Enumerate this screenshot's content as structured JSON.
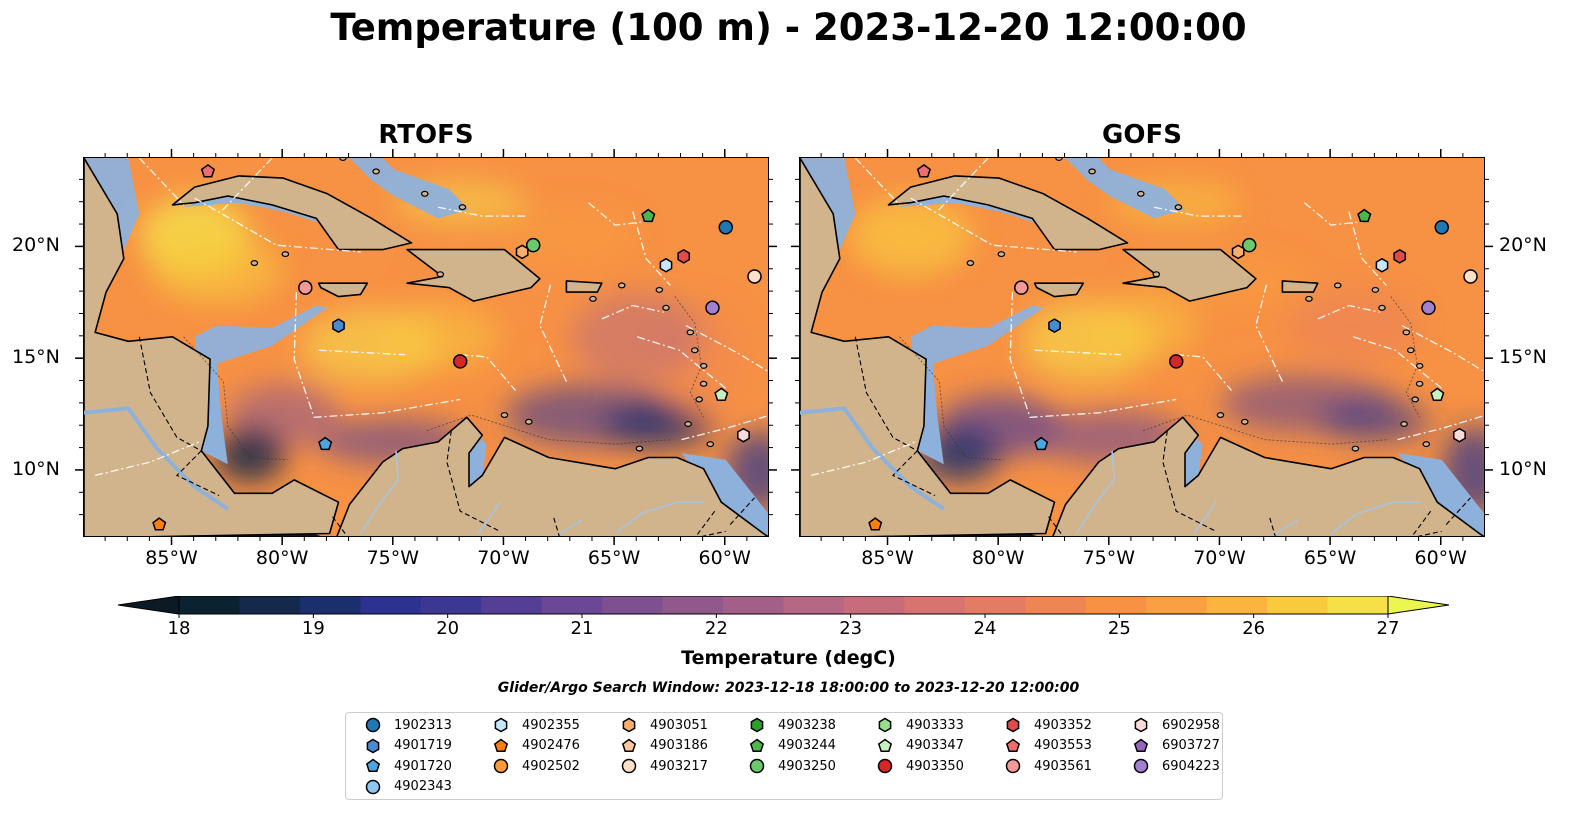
{
  "title": "Temperature (100 m) - 2023-12-20 12:00:00",
  "panels": [
    {
      "title": "RTOFS"
    },
    {
      "title": "GOFS"
    }
  ],
  "lon_ticks": [
    "85°W",
    "80°W",
    "75°W",
    "70°W",
    "65°W",
    "60°W"
  ],
  "lat_ticks": [
    "20°N",
    "15°N",
    "10°N"
  ],
  "map_extent": {
    "lon": [
      -89,
      -58
    ],
    "lat": [
      7,
      24
    ]
  },
  "colorbar": {
    "title": "Temperature (degC)",
    "ticks": [
      "18",
      "19",
      "20",
      "21",
      "22",
      "23",
      "24",
      "25",
      "26",
      "27"
    ],
    "range": [
      18,
      27
    ],
    "colors": [
      "#0b2230",
      "#14294c",
      "#1b2e6e",
      "#2b328f",
      "#3d3794",
      "#553f96",
      "#6b4795",
      "#7e5090",
      "#91598b",
      "#a26088",
      "#b56784",
      "#c86c7b",
      "#d87470",
      "#e47b63",
      "#ee8553",
      "#f79144",
      "#fba042",
      "#fbb43f",
      "#f9c93e",
      "#f5e04a"
    ],
    "under_color": "#0b1a25",
    "over_color": "#ebf74f"
  },
  "search_window": "Glider/Argo Search Window: 2023-12-18 18:00:00 to 2023-12-20 12:00:00",
  "legend": [
    {
      "id": "1902313",
      "marker": "circle",
      "color": "#1f77b4"
    },
    {
      "id": "4901719",
      "marker": "hexagon",
      "color": "#4a8ad0"
    },
    {
      "id": "4901720",
      "marker": "pentagon",
      "color": "#4aa6e0"
    },
    {
      "id": "4902343",
      "marker": "circle",
      "color": "#8ec6f0"
    },
    {
      "id": "4902355",
      "marker": "hexagon",
      "color": "#c6e6fa"
    },
    {
      "id": "4902476",
      "marker": "pentagon",
      "color": "#ff7f0e"
    },
    {
      "id": "4902502",
      "marker": "circle",
      "color": "#fd9a3a"
    },
    {
      "id": "4903051",
      "marker": "hexagon",
      "color": "#fdae6b"
    },
    {
      "id": "4903186",
      "marker": "pentagon",
      "color": "#fdc89a"
    },
    {
      "id": "4903217",
      "marker": "circle",
      "color": "#fde0c8"
    },
    {
      "id": "4903238",
      "marker": "hexagon",
      "color": "#2ca02c"
    },
    {
      "id": "4903244",
      "marker": "pentagon",
      "color": "#4cb84c"
    },
    {
      "id": "4903250",
      "marker": "circle",
      "color": "#6cc86c"
    },
    {
      "id": "4903333",
      "marker": "hexagon",
      "color": "#98df8a"
    },
    {
      "id": "4903347",
      "marker": "pentagon",
      "color": "#c7efc0"
    },
    {
      "id": "4903350",
      "marker": "circle",
      "color": "#d62728"
    },
    {
      "id": "4903352",
      "marker": "hexagon",
      "color": "#e04a4a"
    },
    {
      "id": "4903553",
      "marker": "pentagon",
      "color": "#ee6e6e"
    },
    {
      "id": "4903561",
      "marker": "circle",
      "color": "#f29a9a"
    },
    {
      "id": "6902958",
      "marker": "hexagon",
      "color": "#fadada"
    },
    {
      "id": "6903727",
      "marker": "pentagon",
      "color": "#9467bd"
    },
    {
      "id": "6904223",
      "marker": "circle",
      "color": "#a37fd0"
    }
  ],
  "floats": [
    {
      "id": "1902313",
      "lon": -60.0,
      "lat": 20.9
    },
    {
      "id": "4903244",
      "lon": -63.5,
      "lat": 21.4
    },
    {
      "id": "4903250",
      "lon": -68.7,
      "lat": 20.1
    },
    {
      "id": "4903051",
      "lon": -69.2,
      "lat": 19.8
    },
    {
      "id": "4903352",
      "lon": -61.9,
      "lat": 19.6
    },
    {
      "id": "4902355",
      "lon": -62.7,
      "lat": 19.2
    },
    {
      "id": "4903217",
      "lon": -58.7,
      "lat": 18.7
    },
    {
      "id": "4903561",
      "lon": -79.0,
      "lat": 18.2
    },
    {
      "id": "6904223",
      "lon": -60.6,
      "lat": 17.3
    },
    {
      "id": "4901719",
      "lon": -77.5,
      "lat": 16.5
    },
    {
      "id": "4903350",
      "lon": -72.0,
      "lat": 14.9
    },
    {
      "id": "4903347",
      "lon": -60.2,
      "lat": 13.4
    },
    {
      "id": "6902958",
      "lon": -59.2,
      "lat": 11.6
    },
    {
      "id": "4901720",
      "lon": -78.1,
      "lat": 11.2
    },
    {
      "id": "4902476",
      "lon": -85.6,
      "lat": 7.6
    },
    {
      "id": "4903553",
      "lon": -83.4,
      "lat": 23.4
    }
  ]
}
